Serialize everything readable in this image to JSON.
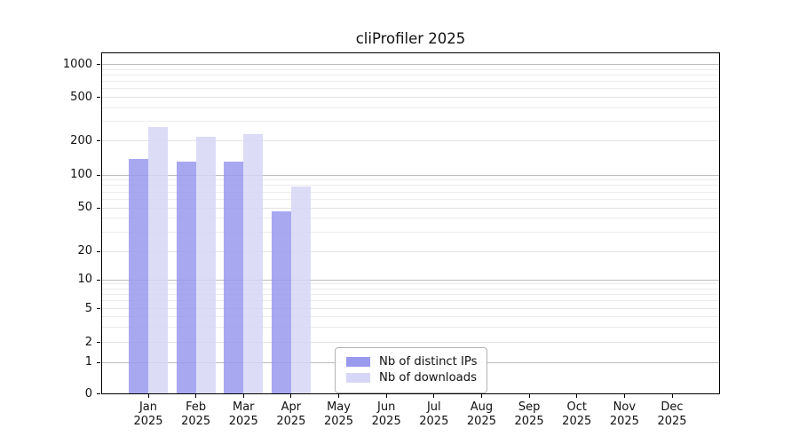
{
  "chart_data": {
    "type": "bar",
    "title": "cliProfiler 2025",
    "year": "2025",
    "categories": [
      "Jan",
      "Feb",
      "Mar",
      "Apr",
      "May",
      "Jun",
      "Jul",
      "Aug",
      "Sep",
      "Oct",
      "Nov",
      "Dec"
    ],
    "series": [
      {
        "name": "Nb of distinct IPs",
        "color": "#9999ee",
        "values": [
          138,
          131,
          132,
          46,
          0,
          0,
          0,
          0,
          0,
          0,
          0,
          0
        ]
      },
      {
        "name": "Nb of downloads",
        "color": "#d6d6f6",
        "values": [
          265,
          219,
          231,
          79,
          0,
          0,
          0,
          0,
          0,
          0,
          0,
          0
        ]
      }
    ],
    "bar_alpha": 0.85,
    "y_ticks": [
      0,
      1,
      2,
      5,
      10,
      20,
      50,
      100,
      200,
      500,
      1000
    ],
    "y_scale": "symlog",
    "ylim": [
      0,
      1290
    ],
    "grid": true,
    "legend_position": "lower center"
  }
}
